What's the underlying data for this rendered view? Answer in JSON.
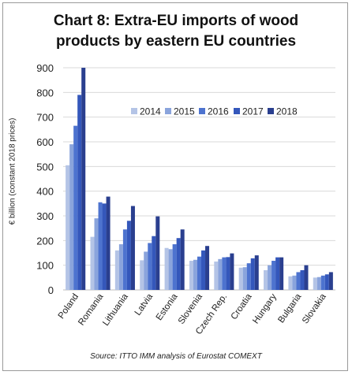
{
  "chart_data": {
    "type": "bar",
    "title_lines": [
      "Chart 8: Extra-EU imports of wood",
      "products by eastern EU countries"
    ],
    "ylabel": "€ billion (constant 2018 prices)",
    "source": "Source: ITTO IMM analysis of Eurostat COMEXT",
    "ylim": [
      0,
      900
    ],
    "yticks": [
      0,
      100,
      200,
      300,
      400,
      500,
      600,
      700,
      800,
      900
    ],
    "grid": true,
    "legend_position": "top-right",
    "categories": [
      "Poland",
      "Romania",
      "Lithuania",
      "Latvia",
      "Estonia",
      "Slovenia",
      "Czech Rep.",
      "Croatia",
      "Hungary",
      "Bulgaria",
      "Slovakia"
    ],
    "series": [
      {
        "name": "2014",
        "color": "#b4c4e6",
        "values": [
          505,
          215,
          160,
          120,
          170,
          118,
          115,
          90,
          80,
          55,
          50
        ]
      },
      {
        "name": "2015",
        "color": "#8aa4dc",
        "values": [
          590,
          290,
          185,
          155,
          165,
          122,
          125,
          92,
          100,
          58,
          52
        ]
      },
      {
        "name": "2016",
        "color": "#4d73cf",
        "values": [
          665,
          355,
          245,
          190,
          185,
          135,
          132,
          108,
          118,
          72,
          58
        ]
      },
      {
        "name": "2017",
        "color": "#3457bb",
        "values": [
          790,
          350,
          280,
          218,
          210,
          160,
          133,
          128,
          132,
          80,
          63
        ]
      },
      {
        "name": "2018",
        "color": "#2a3f8f",
        "values": [
          900,
          378,
          340,
          298,
          245,
          178,
          148,
          140,
          132,
          100,
          72
        ]
      }
    ]
  }
}
